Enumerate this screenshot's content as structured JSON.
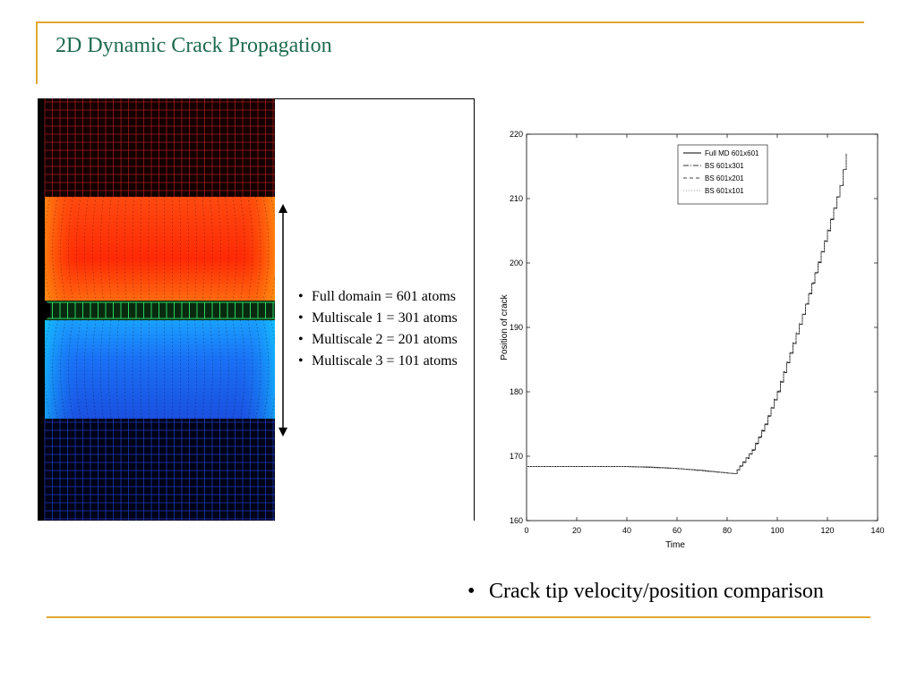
{
  "slide": {
    "title": "2D Dynamic Crack Propagation",
    "accent_color": "#e0a830",
    "title_color": "#1f6b4f"
  },
  "simulation": {
    "description_bullets": [
      "Full domain = 601 atoms",
      "Multiscale 1 = 301 atoms",
      "Multiscale 2 = 201 atoms",
      "Multiscale 3 = 101 atoms"
    ],
    "colors": {
      "upper_band": "#ff3a0a",
      "lower_band": "#1a6bf0",
      "crack_band": "#2ee86a",
      "mesh_top": "#c02020",
      "mesh_bottom": "#2040d0"
    }
  },
  "bottom_bullet": "Crack tip velocity/position comparison",
  "chart_data": {
    "type": "line",
    "xlabel": "Time",
    "ylabel": "Position of crack",
    "xlim": [
      0,
      140
    ],
    "ylim": [
      160,
      220
    ],
    "xticks": [
      0,
      20,
      40,
      60,
      80,
      100,
      120,
      140
    ],
    "yticks": [
      160,
      170,
      180,
      190,
      200,
      210,
      220
    ],
    "grid": false,
    "legend_position": "top-right",
    "series": [
      {
        "name": "Full MD 601x601",
        "style": "solid",
        "x": [
          0,
          20,
          40,
          50,
          60,
          70,
          80,
          83,
          85,
          90,
          95,
          100,
          105,
          110,
          115,
          120,
          125,
          127.5
        ],
        "y": [
          168.4,
          168.4,
          168.4,
          168.3,
          168.1,
          167.8,
          167.4,
          167.3,
          168.5,
          171,
          175,
          180,
          186,
          192,
          198.5,
          205,
          212,
          217
        ]
      },
      {
        "name": "BS 601x301",
        "style": "dashdot",
        "x": [
          0,
          40,
          60,
          80,
          83,
          85,
          90,
          95,
          100,
          105,
          110,
          115,
          120,
          125,
          127.5
        ],
        "y": [
          168.4,
          168.4,
          168.1,
          167.4,
          167.3,
          168.4,
          170.9,
          174.9,
          180,
          186,
          192,
          198.4,
          205,
          212,
          217
        ]
      },
      {
        "name": "BS 601x201",
        "style": "dashed",
        "x": [
          0,
          40,
          60,
          80,
          83,
          85,
          90,
          95,
          100,
          105,
          110,
          115,
          120,
          125,
          127.5
        ],
        "y": [
          168.4,
          168.4,
          168.1,
          167.4,
          167.3,
          168.4,
          171,
          175,
          180.1,
          186.1,
          192.1,
          198.5,
          205.1,
          212,
          217
        ]
      },
      {
        "name": "BS 601x101",
        "style": "dotted",
        "x": [
          0,
          40,
          60,
          80,
          83,
          85,
          90,
          95,
          100,
          105,
          110,
          115,
          120,
          125,
          127.5
        ],
        "y": [
          168.4,
          168.4,
          168.1,
          167.4,
          167.3,
          168.5,
          171.1,
          175.1,
          180.2,
          186.2,
          192.2,
          198.6,
          205.2,
          212.1,
          217
        ]
      }
    ]
  }
}
